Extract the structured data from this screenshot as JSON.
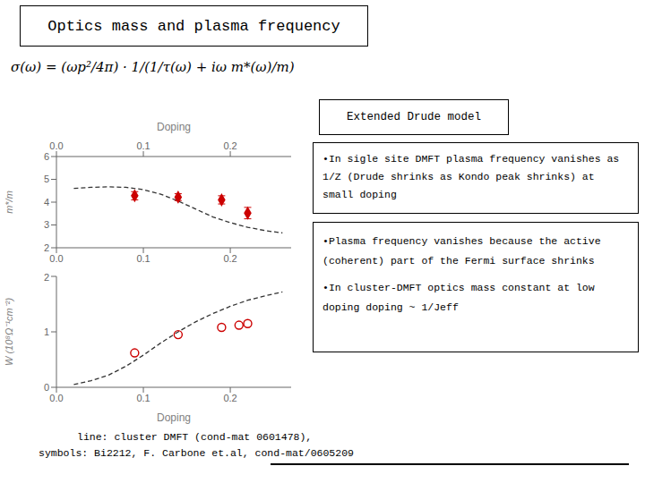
{
  "chart_data": [
    {
      "type": "line",
      "title": "Optics mass and plasma frequency",
      "x_label": "Doping",
      "y_label": "m*/m",
      "xlim": [
        0.0,
        0.27
      ],
      "ylim": [
        2.0,
        6.0
      ],
      "xticks": [
        {
          "value": 0.0,
          "label": "0.0"
        },
        0.1,
        0.2
      ],
      "yticks": [
        2,
        3,
        4,
        5,
        6
      ],
      "grid": false,
      "series": [
        {
          "type": "line",
          "color": "#333333",
          "line_style": "dashed",
          "x": [
            0.02,
            0.04,
            0.06,
            0.08,
            0.1,
            0.12,
            0.14,
            0.16,
            0.18,
            0.2,
            0.22,
            0.24,
            0.26
          ],
          "values": [
            4.6,
            4.65,
            4.67,
            4.65,
            4.55,
            4.35,
            4.05,
            3.7,
            3.35,
            3.1,
            2.9,
            2.75,
            2.65
          ]
        },
        {
          "type": "scatter",
          "color": "#cc0000",
          "marker": "diamond",
          "x": [
            0.09,
            0.14,
            0.19,
            0.22
          ],
          "values": [
            4.28,
            4.22,
            4.1,
            3.52
          ],
          "errors": [
            0.18,
            0.15,
            0.18,
            0.25
          ]
        }
      ],
      "annotations": [
        "Extended Drude model",
        "σ(ω) = (ωp²/4π) · 1/(1/τ(ω) + iω m*(ω)/m)",
        "•In sigle site DMFT plasma frequency vanishes as 1/Z (Drude shrinks as Kondo peak shrinks) at small doping",
        "•Plasma frequency vanishes because the active (coherent) part of the Fermi surface shrinks",
        "•In cluster-DMFT optics mass constant at low doping doping ~ 1/Jeff",
        "line: cluster DMFT (cond-mat 0601478),",
        "symbols: Bi2212, F. Carbone et.al, cond-mat/0605209"
      ]
    },
    {
      "type": "line",
      "x_label": "Doping",
      "y_label": "W (10⁸Ω⁻¹cm⁻²)",
      "xlim": [
        0.0,
        0.27
      ],
      "ylim": [
        0,
        2.0
      ],
      "xticks": [
        {
          "value": 0.0,
          "label": "0.0"
        },
        0.1,
        0.2
      ],
      "yticks": [
        0,
        1,
        2
      ],
      "grid": false,
      "series": [
        {
          "type": "line",
          "color": "#333333",
          "line_style": "dashed",
          "x": [
            0.02,
            0.04,
            0.06,
            0.08,
            0.1,
            0.12,
            0.14,
            0.16,
            0.18,
            0.2,
            0.22,
            0.24,
            0.26
          ],
          "values": [
            0.05,
            0.12,
            0.22,
            0.38,
            0.58,
            0.8,
            1.0,
            1.18,
            1.33,
            1.46,
            1.57,
            1.65,
            1.72
          ]
        },
        {
          "type": "scatter",
          "color": "#cc0000",
          "marker": "open_circle",
          "x": [
            0.09,
            0.14,
            0.19,
            0.21,
            0.22
          ],
          "values": [
            0.62,
            0.95,
            1.08,
            1.12,
            1.15
          ]
        }
      ]
    }
  ]
}
